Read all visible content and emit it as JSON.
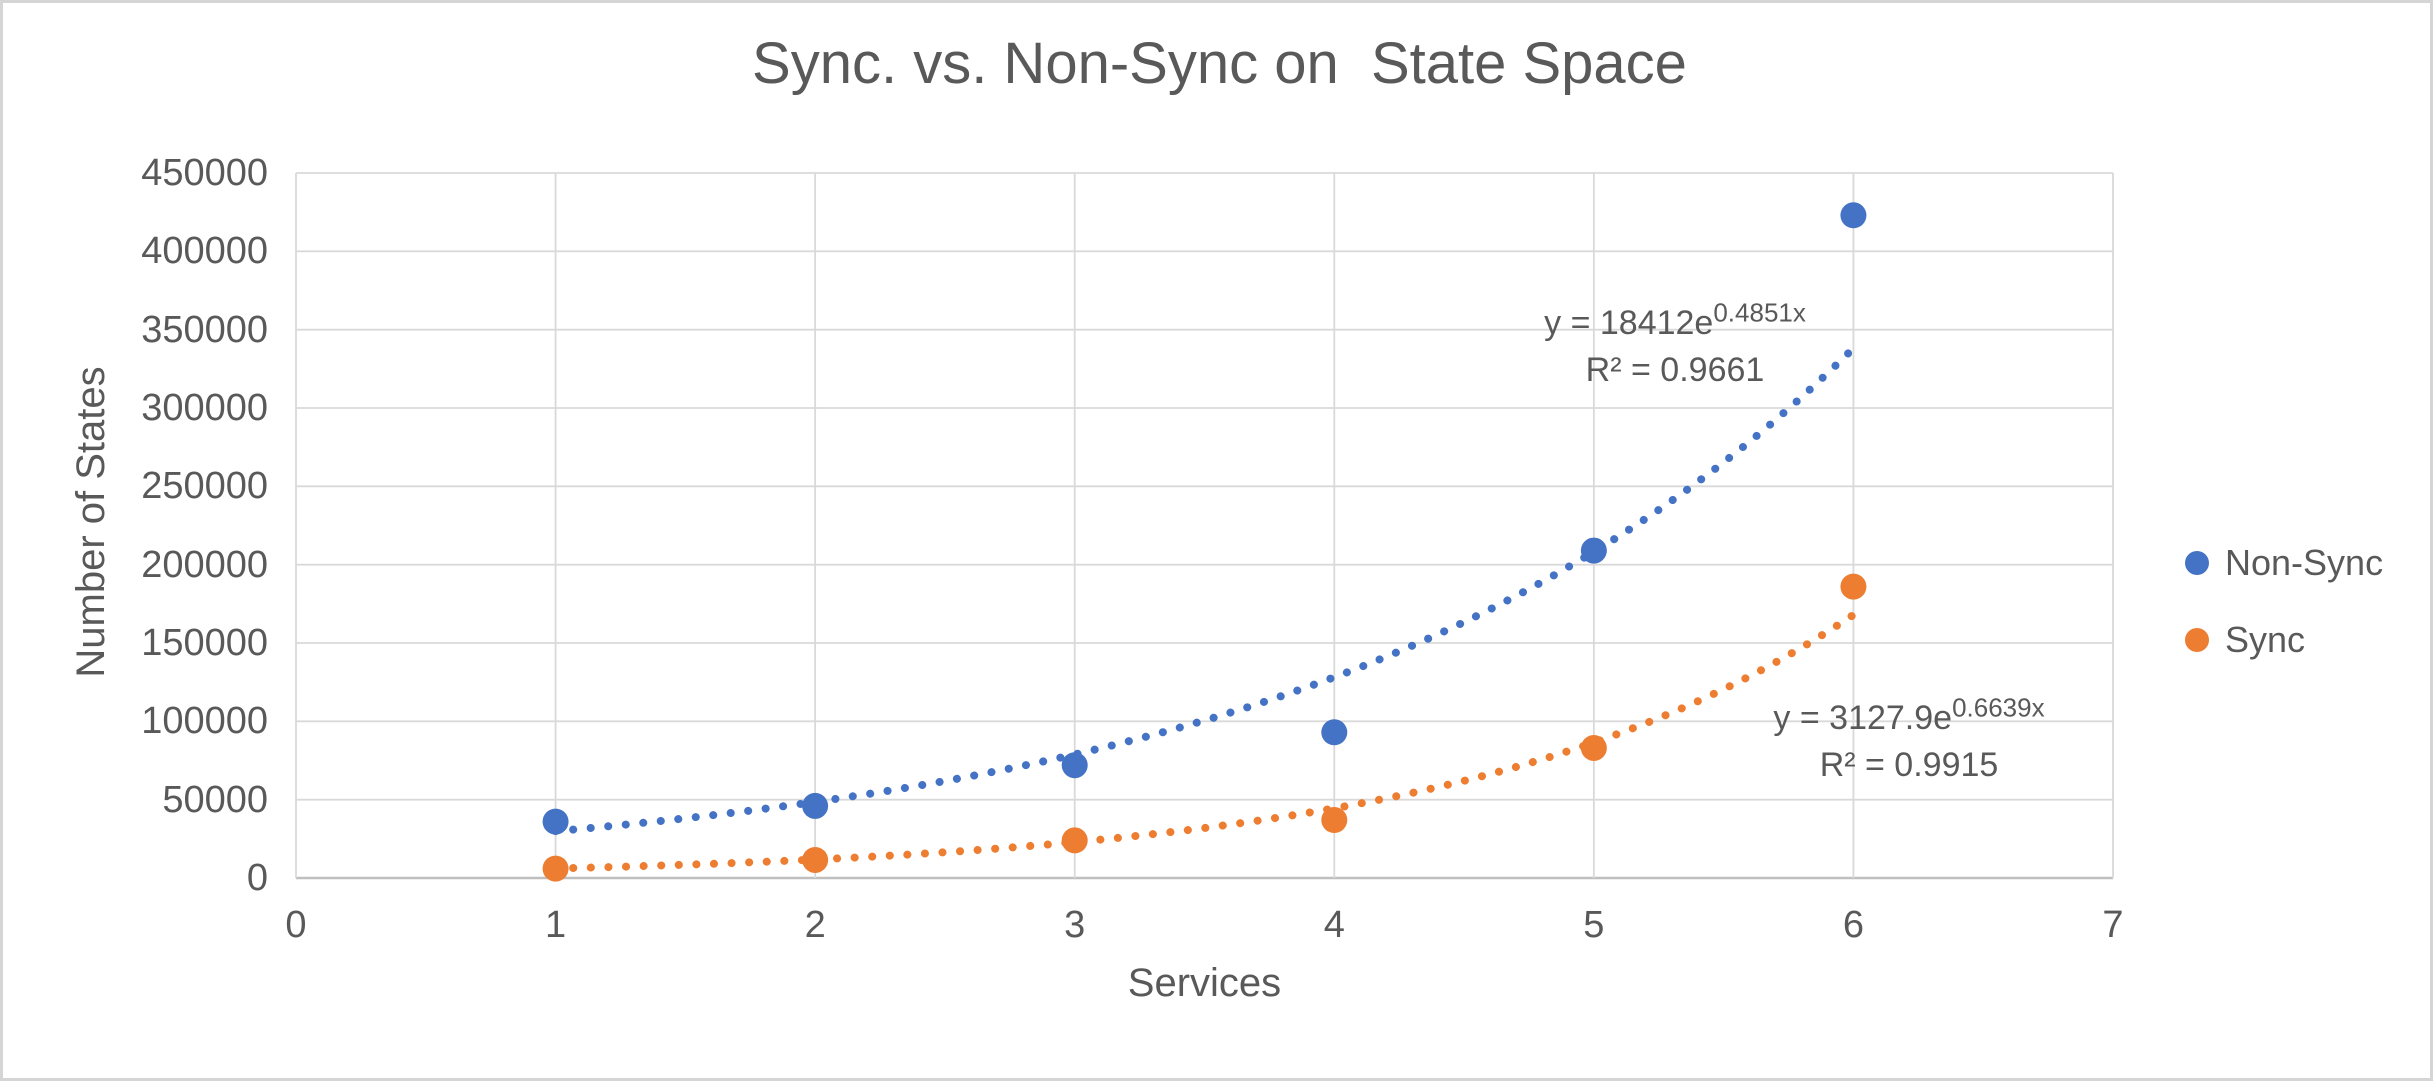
{
  "page": {
    "background": "#FFFFFF",
    "border_color": "#D5D5D5",
    "text_color": "#595959",
    "gridline_color": "#D9D9D9",
    "axis_line_color": "#BFBFBF"
  },
  "chart_data": {
    "type": "scatter",
    "title": "Sync. vs. Non-Sync on  State Space",
    "xlabel": "Services",
    "ylabel": "Number of States",
    "xlim": [
      0,
      7
    ],
    "ylim": [
      0,
      450000
    ],
    "x_ticks": [
      0,
      1,
      2,
      3,
      4,
      5,
      6,
      7
    ],
    "y_ticks": [
      0,
      50000,
      100000,
      150000,
      200000,
      250000,
      300000,
      350000,
      400000,
      450000
    ],
    "grid": true,
    "legend_position": "right",
    "series": [
      {
        "name": "Non-Sync",
        "color": "#4472C4",
        "marker": "circle",
        "x": [
          1,
          2,
          3,
          4,
          5,
          6
        ],
        "values": [
          36000,
          46000,
          72000,
          93000,
          209000,
          423000
        ],
        "trendline": {
          "type": "exponential",
          "a": 18412,
          "b": 0.4851,
          "style": "dotted",
          "equation_base": "y = 18412e",
          "equation_exponent": "0.4851x",
          "r2_label": "R² = 0.9661"
        }
      },
      {
        "name": "Sync",
        "color": "#ED7D31",
        "marker": "circle",
        "x": [
          1,
          2,
          3,
          4,
          5,
          6
        ],
        "values": [
          6000,
          11500,
          24000,
          37000,
          83000,
          186000
        ],
        "trendline": {
          "type": "exponential",
          "a": 3127.9,
          "b": 0.6639,
          "style": "dotted",
          "equation_base": "y = 3127.9e",
          "equation_exponent": "0.6639x",
          "r2_label": "R² = 0.9915"
        }
      }
    ]
  }
}
